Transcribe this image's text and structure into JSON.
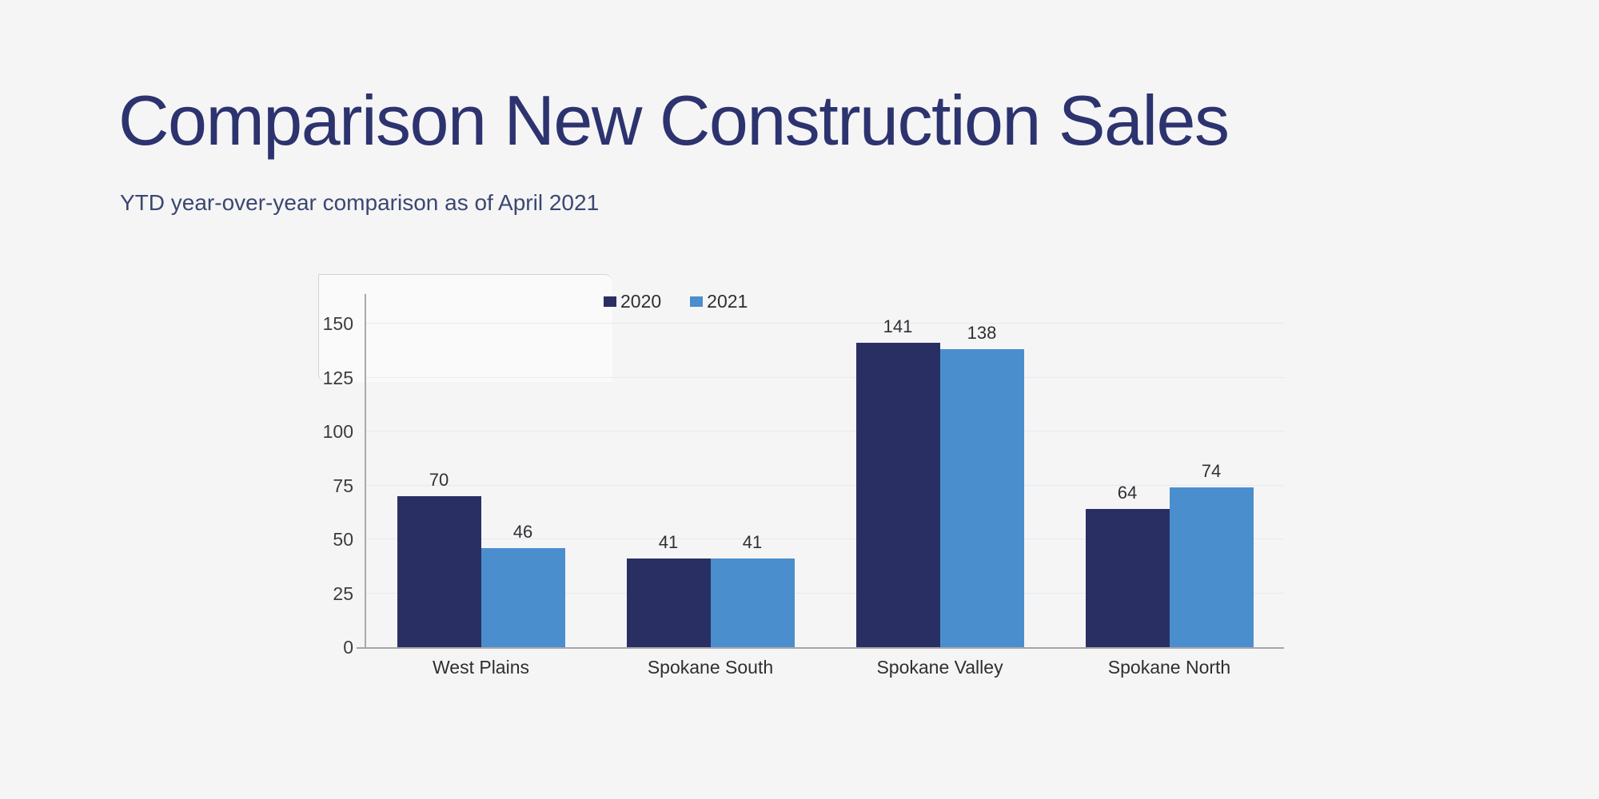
{
  "header": {
    "title": "Comparison New Construction Sales",
    "subtitle": "YTD year-over-year comparison as of April 2021"
  },
  "colors": {
    "background": "#f5f5f6",
    "title_text": "#2c336e",
    "subtitle_text": "#3b4770",
    "gridline": "#e7e9f3",
    "axis_line": "#a7a7ab",
    "label_text": "#303032"
  },
  "chart_data": {
    "type": "bar",
    "title": "Comparison New Construction Sales",
    "subtitle": "YTD year-over-year comparison as of April 2021",
    "categories": [
      "West Plains",
      "Spokane South",
      "Spokane Valley",
      "Spokane North"
    ],
    "series": [
      {
        "name": "2020",
        "color": "#2a2f63",
        "values": [
          70,
          41,
          141,
          64
        ]
      },
      {
        "name": "2021",
        "color": "#4b8ecd",
        "values": [
          46,
          41,
          138,
          74
        ]
      }
    ],
    "xlabel": "",
    "ylabel": "",
    "ylim": [
      0,
      150
    ],
    "yticks": [
      0,
      25,
      50,
      75,
      100,
      125,
      150
    ],
    "grid": "horizontal",
    "legend_position": "top",
    "bar_value_labels": true
  }
}
